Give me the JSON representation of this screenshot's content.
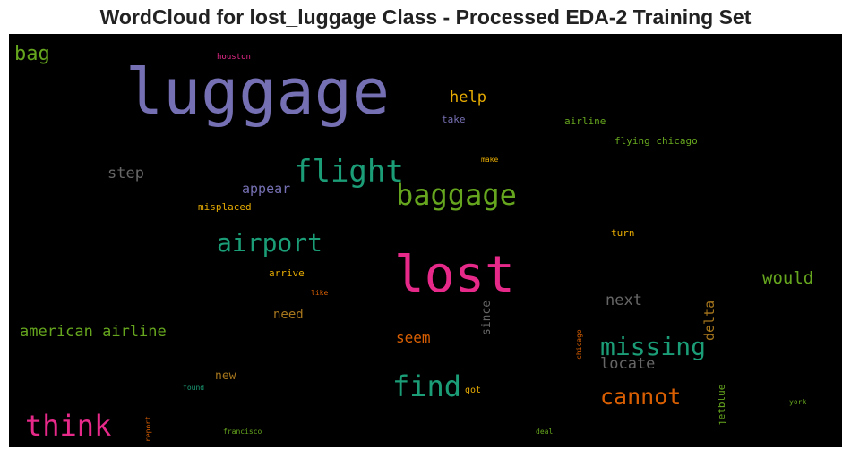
{
  "chart_data": {
    "type": "wordcloud",
    "title": "WordCloud for lost_luggage Class - Processed EDA-2 Training Set",
    "background": "#000000",
    "words": [
      {
        "text": "luggage",
        "size": 70,
        "color": "#7570b3",
        "orientation": "horizontal"
      },
      {
        "text": "lost",
        "size": 56,
        "color": "#e7298a",
        "orientation": "horizontal"
      },
      {
        "text": "flight",
        "size": 34,
        "color": "#1b9e77",
        "orientation": "horizontal"
      },
      {
        "text": "baggage",
        "size": 32,
        "color": "#66a61e",
        "orientation": "horizontal"
      },
      {
        "text": "find",
        "size": 32,
        "color": "#1b9e77",
        "orientation": "horizontal"
      },
      {
        "text": "think",
        "size": 32,
        "color": "#e7298a",
        "orientation": "horizontal"
      },
      {
        "text": "airport",
        "size": 28,
        "color": "#1b9e77",
        "orientation": "horizontal"
      },
      {
        "text": "missing",
        "size": 28,
        "color": "#1b9e77",
        "orientation": "horizontal"
      },
      {
        "text": "cannot",
        "size": 25,
        "color": "#d95f02",
        "orientation": "horizontal"
      },
      {
        "text": "bag",
        "size": 22,
        "color": "#66a61e",
        "orientation": "horizontal"
      },
      {
        "text": "would",
        "size": 19,
        "color": "#66a61e",
        "orientation": "horizontal"
      },
      {
        "text": "next",
        "size": 17,
        "color": "#666666",
        "orientation": "horizontal"
      },
      {
        "text": "locate",
        "size": 17,
        "color": "#666666",
        "orientation": "horizontal"
      },
      {
        "text": "american airline",
        "size": 17,
        "color": "#66a61e",
        "orientation": "horizontal"
      },
      {
        "text": "help",
        "size": 17,
        "color": "#e6ab02",
        "orientation": "horizontal"
      },
      {
        "text": "step",
        "size": 17,
        "color": "#666666",
        "orientation": "horizontal"
      },
      {
        "text": "seem",
        "size": 16,
        "color": "#d95f02",
        "orientation": "horizontal"
      },
      {
        "text": "appear",
        "size": 15,
        "color": "#7570b3",
        "orientation": "horizontal"
      },
      {
        "text": "delta",
        "size": 15,
        "color": "#a6761d",
        "orientation": "vertical"
      },
      {
        "text": "need",
        "size": 14,
        "color": "#a6761d",
        "orientation": "horizontal"
      },
      {
        "text": "since",
        "size": 13,
        "color": "#666666",
        "orientation": "vertical"
      },
      {
        "text": "new",
        "size": 13,
        "color": "#a6761d",
        "orientation": "horizontal"
      },
      {
        "text": "misplaced",
        "size": 11,
        "color": "#e6ab02",
        "orientation": "horizontal"
      },
      {
        "text": "arrive",
        "size": 11,
        "color": "#e6ab02",
        "orientation": "horizontal"
      },
      {
        "text": "airline",
        "size": 11,
        "color": "#66a61e",
        "orientation": "horizontal"
      },
      {
        "text": "flying chicago",
        "size": 11,
        "color": "#66a61e",
        "orientation": "horizontal"
      },
      {
        "text": "turn",
        "size": 11,
        "color": "#e6ab02",
        "orientation": "horizontal"
      },
      {
        "text": "take",
        "size": 11,
        "color": "#7570b3",
        "orientation": "horizontal"
      },
      {
        "text": "jetblue",
        "size": 11,
        "color": "#66a61e",
        "orientation": "vertical"
      },
      {
        "text": "got",
        "size": 10,
        "color": "#e6ab02",
        "orientation": "horizontal"
      },
      {
        "text": "houston",
        "size": 9,
        "color": "#e7298a",
        "orientation": "horizontal"
      },
      {
        "text": "make",
        "size": 8,
        "color": "#e6ab02",
        "orientation": "horizontal"
      },
      {
        "text": "like",
        "size": 8,
        "color": "#d95f02",
        "orientation": "horizontal"
      },
      {
        "text": "chicago",
        "size": 8,
        "color": "#d95f02",
        "orientation": "vertical"
      },
      {
        "text": "found",
        "size": 8,
        "color": "#1b9e77",
        "orientation": "horizontal"
      },
      {
        "text": "report",
        "size": 8,
        "color": "#d95f02",
        "orientation": "vertical"
      },
      {
        "text": "francisco",
        "size": 8,
        "color": "#66a61e",
        "orientation": "horizontal"
      },
      {
        "text": "deal",
        "size": 8,
        "color": "#66a61e",
        "orientation": "horizontal"
      },
      {
        "text": "york",
        "size": 8,
        "color": "#66a61e",
        "orientation": "horizontal"
      }
    ]
  }
}
